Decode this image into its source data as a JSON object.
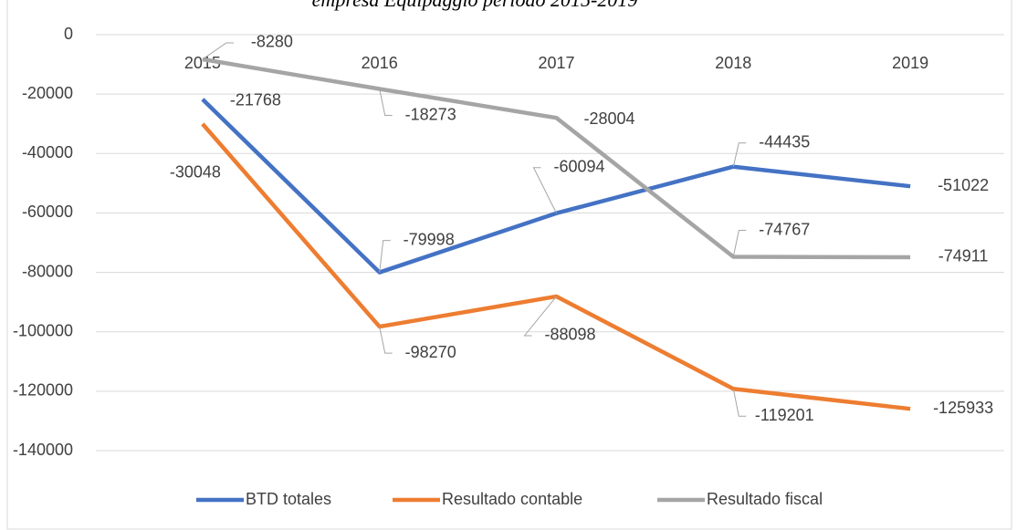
{
  "chart_data": {
    "type": "line",
    "title": "empresa Equipaggio período 2015-2019",
    "categories": [
      "2015",
      "2016",
      "2017",
      "2018",
      "2019"
    ],
    "series": [
      {
        "name": "BTD totales",
        "color": "#4472c4",
        "values": [
          -21768,
          -79998,
          -60094,
          -44435,
          -51022
        ]
      },
      {
        "name": "Resultado contable",
        "color": "#ed7d31",
        "values": [
          -30048,
          -98270,
          -88098,
          -119201,
          -125933
        ]
      },
      {
        "name": "Resultado fiscal",
        "color": "#a5a5a5",
        "values": [
          -8280,
          -18273,
          -28004,
          -74767,
          -74911
        ]
      }
    ],
    "ylim": [
      -140000,
      0
    ],
    "yticks": [
      0,
      -20000,
      -40000,
      -60000,
      -80000,
      -100000,
      -120000,
      -140000
    ],
    "grid": true,
    "legend": "bottom"
  }
}
